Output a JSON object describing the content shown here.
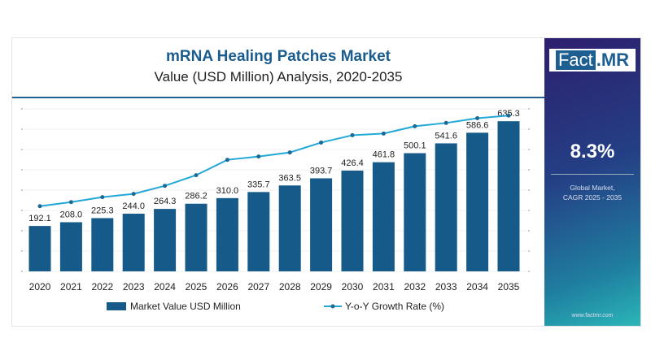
{
  "title": "mRNA Healing Patches Market",
  "subtitle": "Value (USD Million) Analysis, 2020-2035",
  "side": {
    "logo_a": "Fact",
    "logo_b": ".MR",
    "cagr": "8.3%",
    "cagr_label_1": "Global Market,",
    "cagr_label_2": "CAGR 2025 - 2035",
    "url": "www.factmr.com"
  },
  "colors": {
    "bar": "#165a8a",
    "line": "#22a8d6",
    "title": "#1b5c8e"
  },
  "chart_data": {
    "type": "bar",
    "categories": [
      "2020",
      "2021",
      "2022",
      "2023",
      "2024",
      "2025",
      "2026",
      "2027",
      "2028",
      "2029",
      "2030",
      "2031",
      "2032",
      "2033",
      "2034",
      "2035"
    ],
    "series": [
      {
        "name": "Market Value USD Million",
        "type": "bar",
        "values": [
          192.1,
          208.0,
          225.3,
          244.0,
          264.3,
          286.2,
          310.0,
          335.7,
          363.5,
          393.7,
          426.4,
          461.8,
          500.1,
          541.6,
          586.6,
          635.3
        ]
      },
      {
        "name": "Y-o-Y Growth Rate (%)",
        "type": "line",
        "values": [
          276,
          293,
          314,
          328,
          362,
          407,
          472,
          486,
          503,
          545,
          576,
          583,
          614,
          628,
          648,
          659
        ]
      }
    ],
    "ylim": [
      0,
      660
    ],
    "grid": true,
    "legend": "bottom",
    "data_labels": [
      "192.1",
      "208.0",
      "225.3",
      "244.0",
      "264.3",
      "286.2",
      "310.0",
      "335.7",
      "363.5",
      "393.7",
      "426.4",
      "461.8",
      "500.1",
      "541.6",
      "586.6",
      "635.3"
    ]
  }
}
